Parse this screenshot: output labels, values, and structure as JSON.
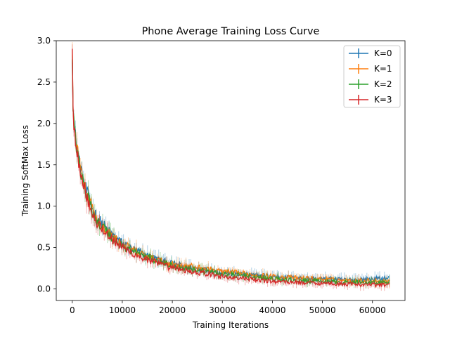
{
  "chart_data": {
    "type": "line",
    "title": "Phone Average Training Loss Curve",
    "xlabel": "Training Iterations",
    "ylabel": "Training SoftMax Loss",
    "xlim": [
      -3200,
      66500
    ],
    "ylim": [
      -0.14,
      3.0
    ],
    "xticks": [
      0,
      10000,
      20000,
      30000,
      40000,
      50000,
      60000
    ],
    "yticks": [
      0.0,
      0.5,
      1.0,
      1.5,
      2.0,
      2.5,
      3.0
    ],
    "xtick_labels": [
      "0",
      "10000",
      "20000",
      "30000",
      "40000",
      "50000",
      "60000"
    ],
    "ytick_labels": [
      "0.0",
      "0.5",
      "1.0",
      "1.5",
      "2.0",
      "2.5",
      "3.0"
    ],
    "grid": false,
    "legend_position": "top-right",
    "error_bars": true,
    "series": [
      {
        "name": "K=0",
        "color": "#1f77b4",
        "x": [
          0,
          200,
          500,
          1000,
          2000,
          3000,
          4000,
          5000,
          6000,
          8000,
          10000,
          12000,
          15000,
          18000,
          20000,
          25000,
          30000,
          35000,
          40000,
          45000,
          50000,
          55000,
          60000,
          63500
        ],
        "y": [
          2.85,
          2.1,
          1.9,
          1.7,
          1.35,
          1.15,
          0.98,
          0.85,
          0.78,
          0.65,
          0.55,
          0.48,
          0.4,
          0.34,
          0.3,
          0.25,
          0.2,
          0.17,
          0.15,
          0.13,
          0.12,
          0.11,
          0.12,
          0.13
        ]
      },
      {
        "name": "K=1",
        "color": "#ff7f0e",
        "x": [
          0,
          200,
          500,
          1000,
          2000,
          3000,
          4000,
          5000,
          6000,
          8000,
          10000,
          12000,
          15000,
          18000,
          20000,
          25000,
          30000,
          35000,
          40000,
          45000,
          50000,
          55000,
          60000,
          63500
        ],
        "y": [
          2.85,
          2.1,
          1.88,
          1.68,
          1.33,
          1.12,
          0.96,
          0.83,
          0.76,
          0.63,
          0.54,
          0.47,
          0.39,
          0.33,
          0.3,
          0.26,
          0.21,
          0.18,
          0.15,
          0.13,
          0.12,
          0.1,
          0.1,
          0.09
        ]
      },
      {
        "name": "K=2",
        "color": "#2ca02c",
        "x": [
          0,
          200,
          500,
          1000,
          2000,
          3000,
          4000,
          5000,
          6000,
          8000,
          10000,
          12000,
          15000,
          18000,
          20000,
          25000,
          30000,
          35000,
          40000,
          45000,
          50000,
          55000,
          60000,
          63500
        ],
        "y": [
          2.85,
          2.08,
          1.87,
          1.67,
          1.32,
          1.12,
          0.95,
          0.82,
          0.75,
          0.62,
          0.52,
          0.46,
          0.38,
          0.32,
          0.28,
          0.23,
          0.18,
          0.15,
          0.12,
          0.1,
          0.09,
          0.08,
          0.08,
          0.08
        ]
      },
      {
        "name": "K=3",
        "color": "#d62728",
        "x": [
          0,
          200,
          500,
          1000,
          2000,
          3000,
          4000,
          5000,
          6000,
          8000,
          10000,
          12000,
          15000,
          18000,
          20000,
          25000,
          30000,
          35000,
          40000,
          45000,
          50000,
          55000,
          60000,
          63500
        ],
        "y": [
          2.85,
          2.05,
          1.85,
          1.65,
          1.3,
          1.1,
          0.93,
          0.8,
          0.73,
          0.6,
          0.5,
          0.43,
          0.35,
          0.29,
          0.25,
          0.2,
          0.15,
          0.12,
          0.09,
          0.08,
          0.07,
          0.06,
          0.05,
          0.05
        ]
      }
    ]
  }
}
